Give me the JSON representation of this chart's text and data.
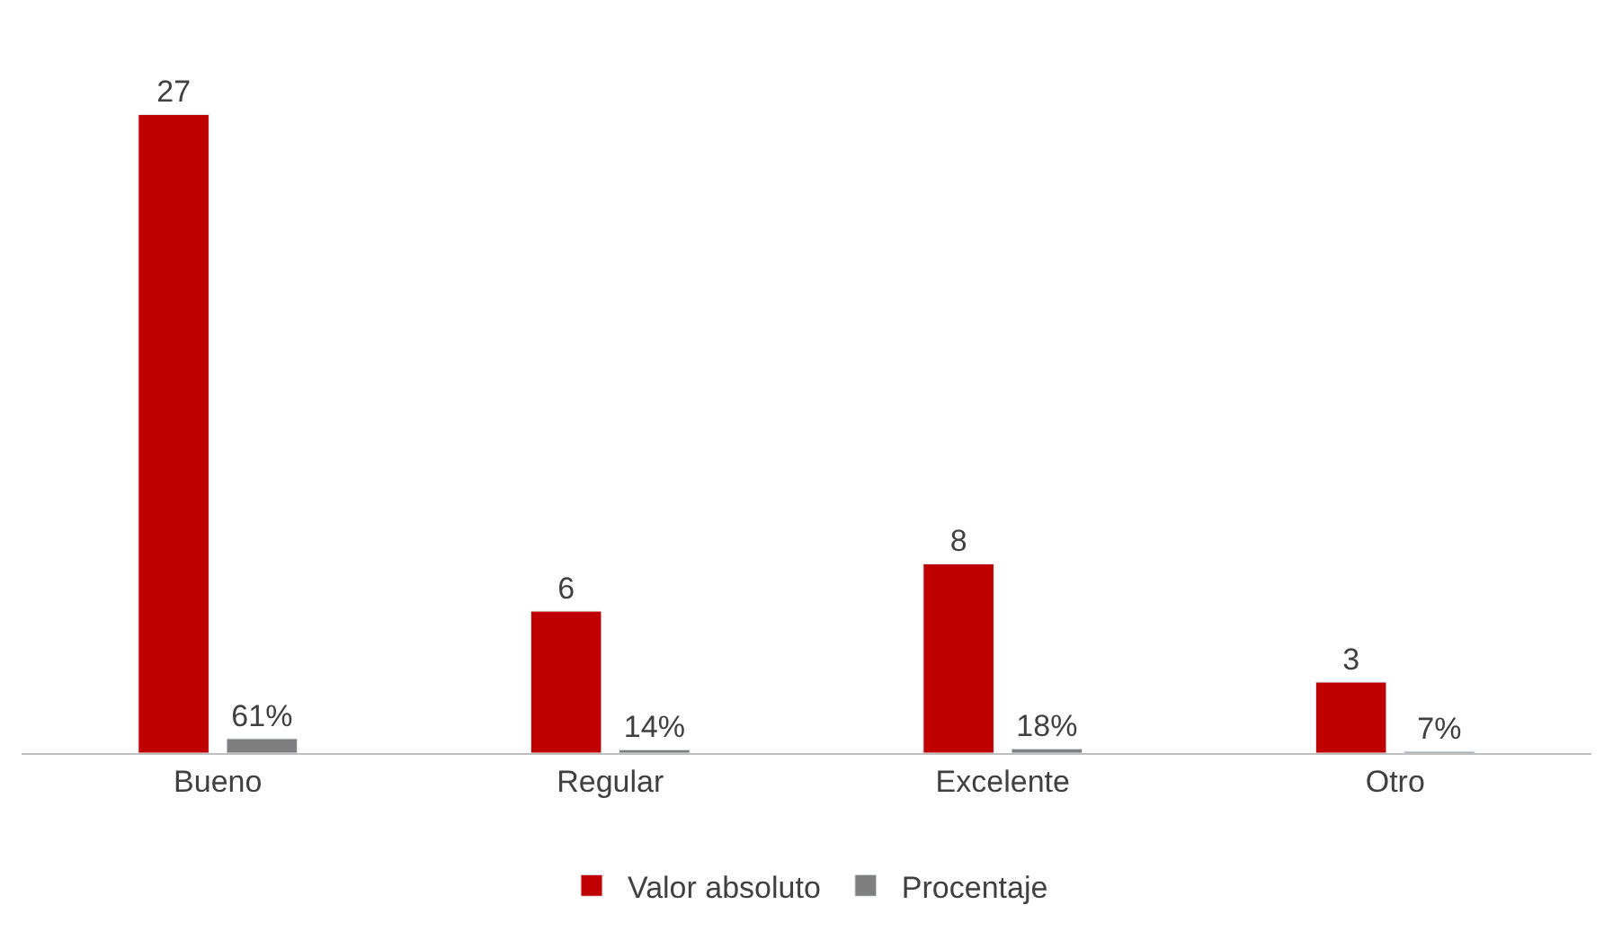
{
  "chart_data": {
    "type": "bar",
    "categories": [
      "Bueno",
      "Regular",
      "Excelente",
      "Otro"
    ],
    "series": [
      {
        "name": "Valor absoluto",
        "color": "#c00000",
        "values": [
          27,
          6,
          8,
          3
        ],
        "value_labels": [
          "27",
          "6",
          "8",
          "3"
        ]
      },
      {
        "name": "Procentaje",
        "color": "#7f7f7f",
        "values": [
          0.61,
          0.14,
          0.18,
          0.07
        ],
        "value_labels": [
          "61%",
          "14%",
          "18%",
          "7%"
        ]
      }
    ],
    "legend": "bottom"
  }
}
